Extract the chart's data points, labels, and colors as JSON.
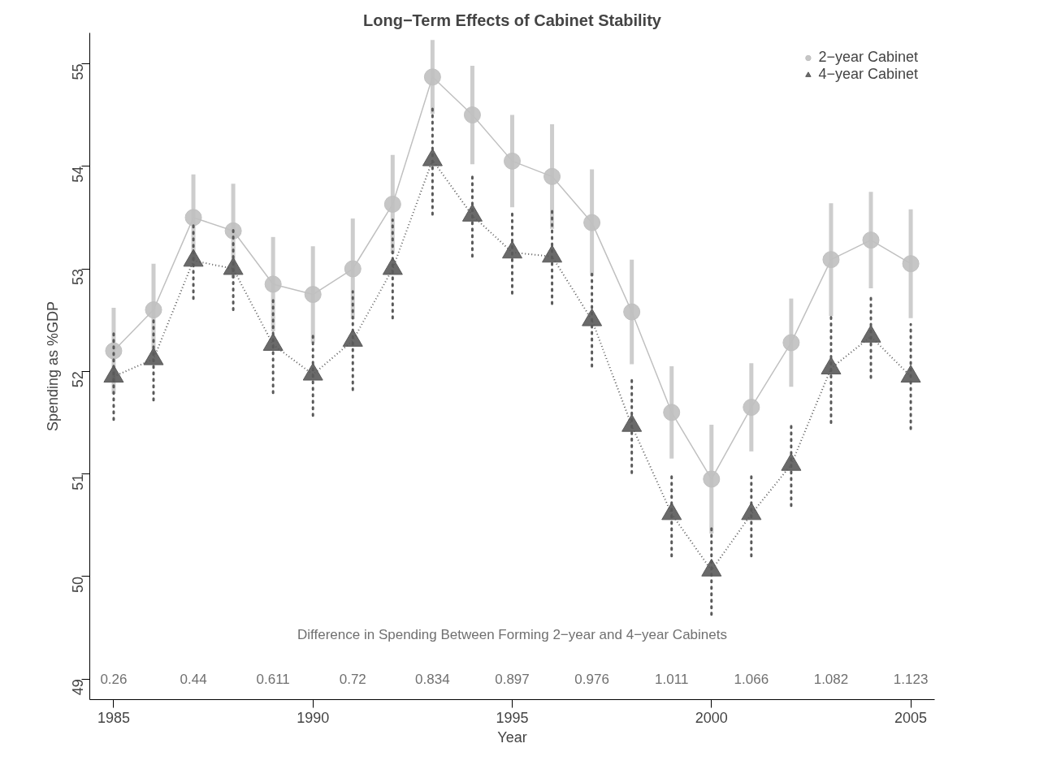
{
  "chart_data": {
    "type": "line",
    "title": "Long−Term Effects of Cabinet Stability",
    "xlabel": "Year",
    "ylabel": "Spending as %GDP",
    "x": [
      1985,
      1986,
      1987,
      1988,
      1989,
      1990,
      1991,
      1992,
      1993,
      1994,
      1995,
      1996,
      1997,
      1998,
      1999,
      2000,
      2001,
      2002,
      2003,
      2004,
      2005
    ],
    "series": [
      {
        "name": "2−year Cabinet",
        "color": "#c0c0c0",
        "marker": "circle",
        "line_style": "solid",
        "values": [
          52.2,
          52.6,
          53.5,
          53.37,
          52.85,
          52.75,
          53.0,
          53.63,
          54.87,
          54.5,
          54.05,
          53.9,
          53.45,
          52.58,
          51.6,
          50.95,
          51.65,
          52.28,
          53.09,
          53.28,
          53.05
        ],
        "errors": [
          0.42,
          0.45,
          0.42,
          0.46,
          0.46,
          0.47,
          0.49,
          0.48,
          0.36,
          0.48,
          0.45,
          0.51,
          0.52,
          0.51,
          0.45,
          0.53,
          0.43,
          0.43,
          0.55,
          0.47,
          0.53
        ]
      },
      {
        "name": "4−year Cabinet",
        "color": "#5a5a5a",
        "marker": "triangle",
        "line_style": "dotted",
        "values": [
          51.95,
          52.12,
          53.08,
          53.0,
          52.26,
          51.97,
          52.3,
          53.0,
          54.06,
          53.52,
          53.16,
          53.12,
          52.5,
          51.47,
          50.61,
          50.06,
          50.61,
          51.09,
          52.03,
          52.34,
          51.95
        ],
        "errors": [
          0.42,
          0.4,
          0.37,
          0.4,
          0.47,
          0.4,
          0.48,
          0.48,
          0.53,
          0.4,
          0.4,
          0.46,
          0.45,
          0.46,
          0.41,
          0.43,
          0.41,
          0.4,
          0.53,
          0.4,
          0.51
        ]
      }
    ],
    "xlim": [
      1984.4,
      2005.6
    ],
    "ylim": [
      48.8,
      55.3
    ],
    "xticks": [
      1985,
      1990,
      1995,
      2000,
      2005
    ],
    "yticks": [
      49,
      50,
      51,
      52,
      53,
      54,
      55
    ],
    "grid": false,
    "legend": "top right",
    "annotations": [
      "Difference in Spending Between Forming 2−year and 4−year Cabinets",
      "0.26",
      "0.44",
      "0.611",
      "0.72",
      "0.834",
      "0.897",
      "0.976",
      "1.011",
      "1.066",
      "1.082",
      "1.123"
    ]
  }
}
